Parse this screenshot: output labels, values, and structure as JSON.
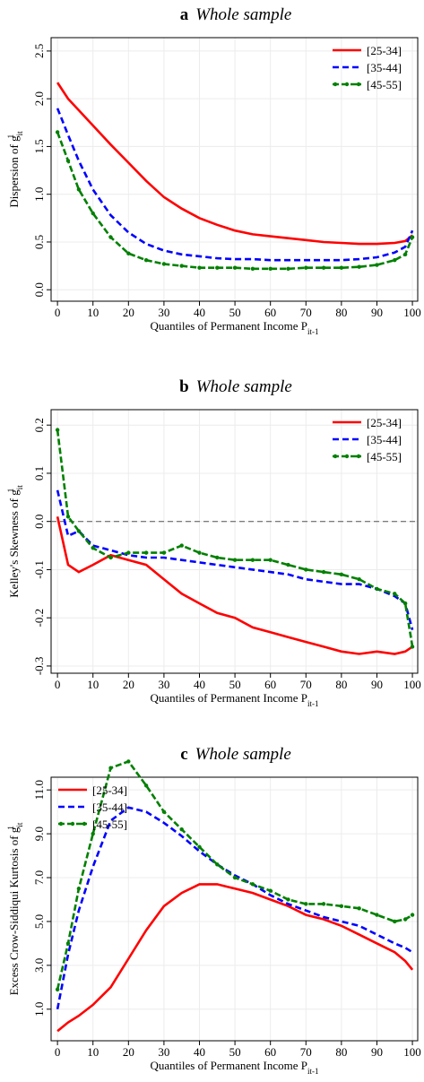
{
  "chart_data": [
    {
      "type": "line",
      "panel": "a",
      "title": "Whole sample",
      "ylabel": "Dispersion of g",
      "ylabel_sub": "it",
      "ylabel_sup": "1",
      "xlabel": "Quantiles of Permanent Income P",
      "xlabel_sub": "it-1",
      "x": [
        0,
        3,
        6,
        10,
        15,
        20,
        25,
        30,
        35,
        40,
        45,
        50,
        55,
        60,
        65,
        70,
        75,
        80,
        85,
        90,
        95,
        98,
        100
      ],
      "series": [
        {
          "name": "[25-34]",
          "color": "#ff0000",
          "style": "solid",
          "values": [
            2.17,
            2.0,
            1.88,
            1.72,
            1.52,
            1.33,
            1.14,
            0.97,
            0.85,
            0.75,
            0.68,
            0.62,
            0.58,
            0.56,
            0.54,
            0.52,
            0.5,
            0.49,
            0.48,
            0.48,
            0.49,
            0.51,
            0.57
          ]
        },
        {
          "name": "[35-44]",
          "color": "#0000ff",
          "style": "dashed",
          "values": [
            1.9,
            1.62,
            1.35,
            1.05,
            0.78,
            0.6,
            0.48,
            0.41,
            0.37,
            0.35,
            0.33,
            0.32,
            0.32,
            0.31,
            0.31,
            0.31,
            0.31,
            0.31,
            0.32,
            0.34,
            0.39,
            0.45,
            0.62
          ]
        },
        {
          "name": "[45-55]",
          "color": "#008000",
          "style": "dashdot-marker",
          "values": [
            1.65,
            1.35,
            1.05,
            0.8,
            0.55,
            0.38,
            0.31,
            0.27,
            0.25,
            0.23,
            0.23,
            0.23,
            0.22,
            0.22,
            0.22,
            0.23,
            0.23,
            0.23,
            0.24,
            0.26,
            0.31,
            0.37,
            0.55
          ]
        }
      ],
      "xlim": [
        -1.8,
        101.5
      ],
      "xticks": [
        0,
        10,
        20,
        30,
        40,
        50,
        60,
        70,
        80,
        90,
        100
      ],
      "ylim": [
        -0.12,
        2.64
      ],
      "yticks": [
        {
          "value": 0,
          "label": "0.0"
        },
        0.5,
        {
          "value": 1,
          "label": "1.0"
        },
        1.5,
        {
          "value": 2,
          "label": "2.0"
        },
        2.5
      ],
      "grid": true,
      "legend": "upper right"
    },
    {
      "type": "line",
      "panel": "b",
      "title": "Whole sample",
      "ylabel": "Kelley's Skewness of g",
      "ylabel_sub": "it",
      "ylabel_sup": "1",
      "xlabel": "Quantiles of Permanent Income P",
      "xlabel_sub": "it-1",
      "x": [
        0,
        3,
        6,
        10,
        15,
        20,
        25,
        30,
        35,
        40,
        45,
        50,
        55,
        60,
        65,
        70,
        75,
        80,
        85,
        90,
        95,
        98,
        100
      ],
      "series": [
        {
          "name": "[25-34]",
          "color": "#ff0000",
          "style": "solid",
          "values": [
            0.01,
            -0.09,
            -0.105,
            -0.09,
            -0.07,
            -0.08,
            -0.09,
            -0.12,
            -0.15,
            -0.17,
            -0.19,
            -0.2,
            -0.22,
            -0.23,
            -0.24,
            -0.25,
            -0.26,
            -0.27,
            -0.275,
            -0.27,
            -0.275,
            -0.27,
            -0.26
          ]
        },
        {
          "name": "[35-44]",
          "color": "#0000ff",
          "style": "dashed",
          "values": [
            0.065,
            -0.03,
            -0.02,
            -0.05,
            -0.06,
            -0.07,
            -0.075,
            -0.075,
            -0.08,
            -0.085,
            -0.09,
            -0.095,
            -0.1,
            -0.105,
            -0.11,
            -0.12,
            -0.125,
            -0.13,
            -0.13,
            -0.14,
            -0.155,
            -0.17,
            -0.225
          ]
        },
        {
          "name": "[45-55]",
          "color": "#008000",
          "style": "dashdot-marker",
          "values": [
            0.19,
            0.01,
            -0.02,
            -0.055,
            -0.075,
            -0.065,
            -0.065,
            -0.065,
            -0.05,
            -0.065,
            -0.075,
            -0.08,
            -0.08,
            -0.08,
            -0.09,
            -0.1,
            -0.105,
            -0.11,
            -0.12,
            -0.14,
            -0.15,
            -0.17,
            -0.26
          ]
        }
      ],
      "xlim": [
        -1.8,
        101.5
      ],
      "xticks": [
        0,
        10,
        20,
        30,
        40,
        50,
        60,
        70,
        80,
        90,
        100
      ],
      "ylim": [
        -0.315,
        0.232
      ],
      "yticks": [
        -0.3,
        -0.2,
        -0.1,
        {
          "value": 0,
          "label": "0.0"
        },
        0.1,
        0.2
      ],
      "grid": true,
      "zero_line": true,
      "legend": "upper right"
    },
    {
      "type": "line",
      "panel": "c",
      "title": "Whole sample",
      "ylabel": "Excess Crow-Siddiqui Kurtosis of g",
      "ylabel_sub": "it",
      "ylabel_sup": "1",
      "xlabel": "Quantiles of Permanent Income P",
      "xlabel_sub": "it-1",
      "x": [
        0,
        3,
        6,
        10,
        15,
        20,
        25,
        30,
        35,
        40,
        45,
        50,
        55,
        60,
        65,
        70,
        75,
        80,
        85,
        90,
        95,
        98,
        100
      ],
      "series": [
        {
          "name": "[25-34]",
          "color": "#ff0000",
          "style": "solid",
          "values": [
            0.0,
            0.4,
            0.7,
            1.2,
            2.0,
            3.3,
            4.6,
            5.7,
            6.3,
            6.7,
            6.7,
            6.5,
            6.3,
            6.0,
            5.7,
            5.3,
            5.1,
            4.8,
            4.4,
            4.0,
            3.6,
            3.2,
            2.8
          ]
        },
        {
          "name": "[35-44]",
          "color": "#0000ff",
          "style": "dashed",
          "values": [
            1.0,
            3.5,
            5.5,
            7.5,
            9.6,
            10.2,
            10.0,
            9.5,
            8.9,
            8.2,
            7.6,
            7.1,
            6.7,
            6.2,
            5.8,
            5.5,
            5.2,
            5.0,
            4.8,
            4.4,
            4.0,
            3.8,
            3.6
          ]
        },
        {
          "name": "[45-55]",
          "color": "#008000",
          "style": "dashdot-marker",
          "values": [
            1.9,
            4.0,
            6.5,
            9.0,
            12.0,
            12.3,
            11.2,
            10.0,
            9.2,
            8.4,
            7.6,
            7.0,
            6.7,
            6.4,
            6.0,
            5.8,
            5.8,
            5.7,
            5.6,
            5.3,
            5.0,
            5.1,
            5.3
          ]
        }
      ],
      "xlim": [
        -1.8,
        101.5
      ],
      "xticks": [
        0,
        10,
        20,
        30,
        40,
        50,
        60,
        70,
        80,
        90,
        100
      ],
      "ylim": [
        -0.44,
        11.58
      ],
      "yticks": [
        {
          "value": 1,
          "label": "1.0"
        },
        {
          "value": 3,
          "label": "3.0"
        },
        {
          "value": 5,
          "label": "5.0"
        },
        {
          "value": 7,
          "label": "7.0"
        },
        {
          "value": 9,
          "label": "9.0"
        },
        {
          "value": 11,
          "label": "11.0"
        }
      ],
      "grid": true,
      "legend": "upper left"
    }
  ]
}
